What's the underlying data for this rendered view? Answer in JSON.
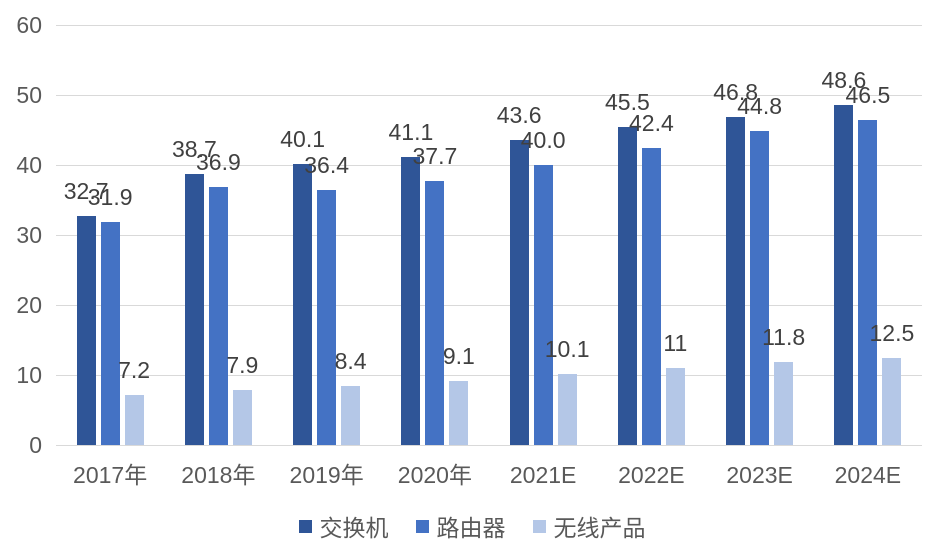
{
  "chart_data": {
    "type": "bar",
    "title": "",
    "xlabel": "",
    "ylabel": "",
    "categories": [
      "2017年",
      "2018年",
      "2019年",
      "2020年",
      "2021E",
      "2022E",
      "2023E",
      "2024E"
    ],
    "series": [
      {
        "name": "交换机",
        "color": "#2F5597",
        "values": [
          32.7,
          38.7,
          40.1,
          41.1,
          43.6,
          45.5,
          46.8,
          48.6
        ],
        "labels": [
          "32.7",
          "38.7",
          "40.1",
          "41.1",
          "43.6",
          "45.5",
          "46.8",
          "48.6"
        ]
      },
      {
        "name": "路由器",
        "color": "#4472C4",
        "values": [
          31.9,
          36.9,
          36.4,
          37.7,
          40.0,
          42.4,
          44.8,
          46.5
        ],
        "labels": [
          "31.9",
          "36.9",
          "36.4",
          "37.7",
          "40.0",
          "42.4",
          "44.8",
          "46.5"
        ]
      },
      {
        "name": "无线产品",
        "color": "#B4C7E7",
        "values": [
          7.2,
          7.9,
          8.4,
          9.1,
          10.1,
          11,
          11.8,
          12.5
        ],
        "labels": [
          "7.2",
          "7.9",
          "8.4",
          "9.1",
          "10.1",
          "11",
          "11.8",
          "12.5"
        ]
      }
    ],
    "ylim": [
      0,
      60
    ],
    "yticks": [
      0,
      10,
      20,
      30,
      40,
      50,
      60
    ],
    "ytick_labels": [
      "0",
      "10",
      "20",
      "30",
      "40",
      "50",
      "60"
    ],
    "grid": true,
    "legend_position": "bottom"
  },
  "colors": {
    "background": "#FFFFFF",
    "gridline": "#D9D9D9",
    "axis_label": "#595959",
    "data_label": "#404040"
  }
}
